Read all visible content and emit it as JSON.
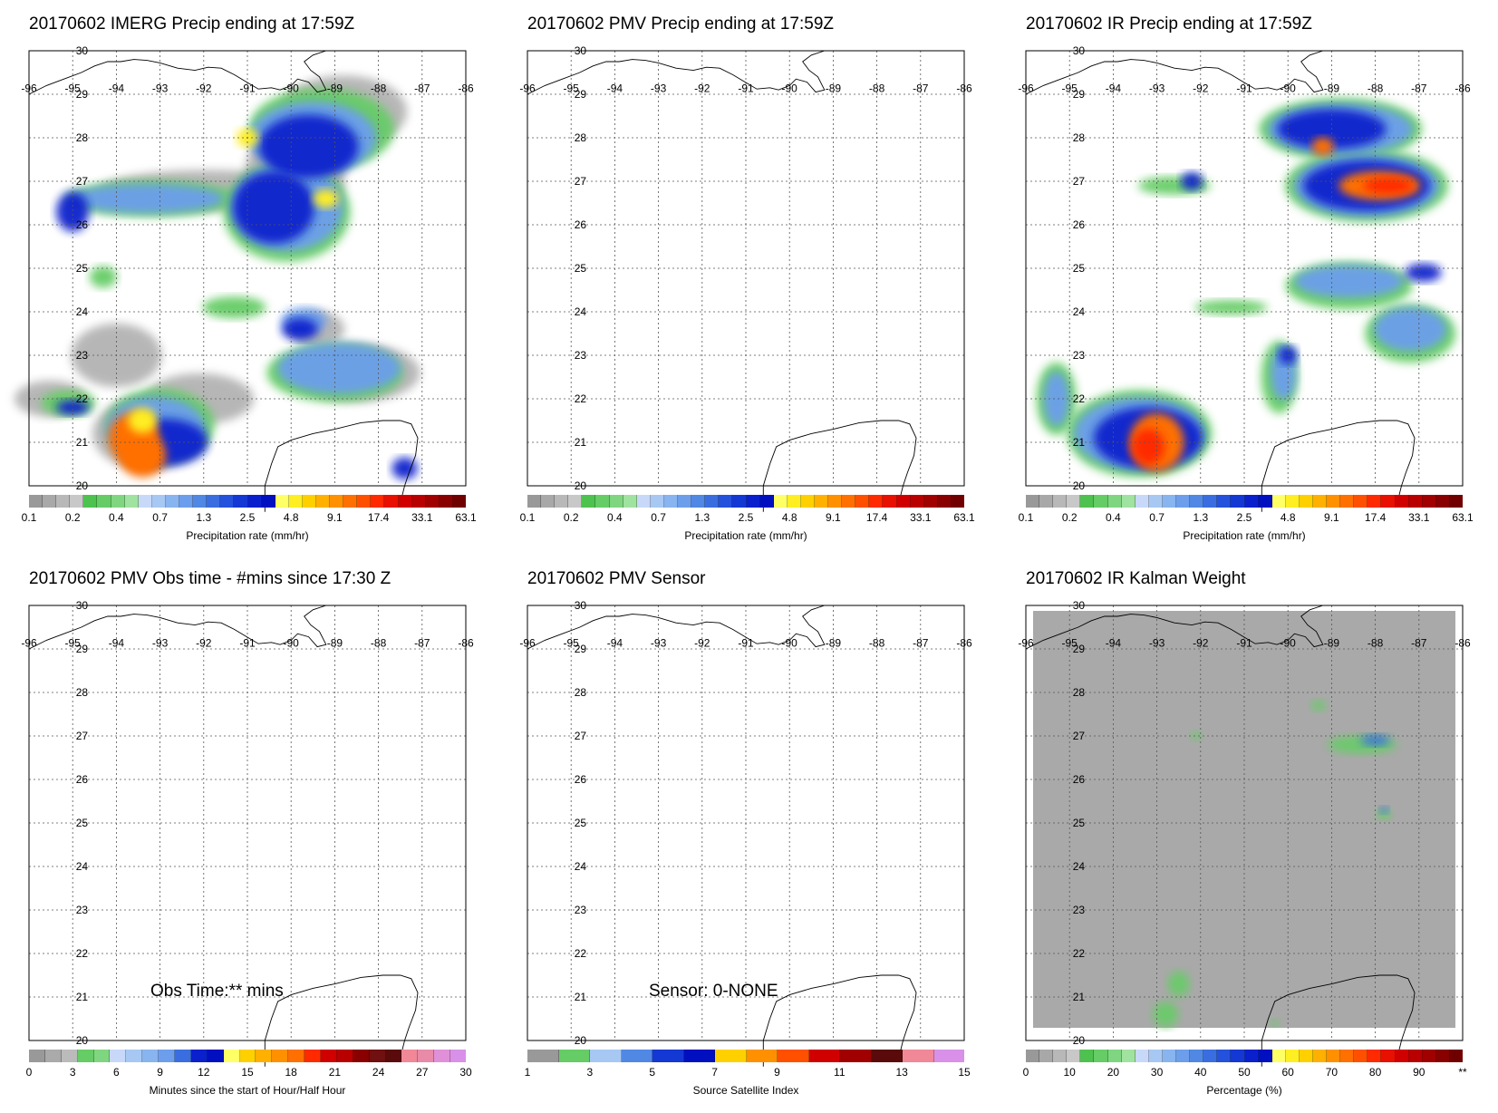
{
  "map_frame": {
    "lon_range": [
      -96,
      -86
    ],
    "lat_range": [
      20,
      30
    ],
    "lon_ticks": [
      "-96",
      "-95",
      "-94",
      "-93",
      "-92",
      "-91",
      "-90",
      "-89",
      "-88",
      "-87",
      "-86"
    ],
    "lat_ticks": [
      "20",
      "21",
      "22",
      "23",
      "24",
      "25",
      "26",
      "27",
      "28",
      "29",
      "30"
    ],
    "grid": true,
    "grid_style": "dotted",
    "coastline_color": "#000000"
  },
  "precip_colorbar": {
    "colors": [
      "#999999",
      "#a8a8a8",
      "#b8b8b8",
      "#c8c8c8",
      "#4ec24e",
      "#66cc66",
      "#80d680",
      "#a0e2a0",
      "#c8d8f8",
      "#a8c8f4",
      "#88b4f0",
      "#6c9eec",
      "#5088e4",
      "#3a6ee0",
      "#2452dc",
      "#1438d4",
      "#0a20cc",
      "#0010c0",
      "#ffff66",
      "#ffee22",
      "#ffd000",
      "#ffb000",
      "#ff9000",
      "#ff7000",
      "#ff5000",
      "#ff2a00",
      "#e81000",
      "#d00000",
      "#b80000",
      "#a00000",
      "#880000",
      "#700000"
    ],
    "ticks": [
      "0.1",
      "0.2",
      "0.4",
      "0.7",
      "1.3",
      "2.5",
      "4.8",
      "9.1",
      "17.4",
      "33.1",
      "63.1"
    ],
    "title": "Precipitation rate (mm/hr)"
  },
  "panels": [
    {
      "title": "20170602 IMERG Precip ending at 17:59Z",
      "field": "imerg",
      "colorbar": "precip"
    },
    {
      "title": "20170602 PMV Precip ending at 17:59Z",
      "field": "none",
      "colorbar": "precip"
    },
    {
      "title": "20170602 IR Precip ending at 17:59Z",
      "field": "ir",
      "colorbar": "precip"
    },
    {
      "title": "20170602 PMV Obs time - #mins since 17:30 Z",
      "field": "none",
      "note": "Obs Time:** mins",
      "colorbar": {
        "colors": [
          "#999999",
          "#aaaaaa",
          "#bbbbbb",
          "#66cc66",
          "#80d680",
          "#c8d8f8",
          "#a8c8f4",
          "#88b4f0",
          "#6c9eec",
          "#3a6ee0",
          "#0a20cc",
          "#0010c0",
          "#ffff66",
          "#ffd000",
          "#ffb000",
          "#ff9000",
          "#ff7000",
          "#ff2a00",
          "#d00000",
          "#b80000",
          "#880000",
          "#701010",
          "#5a0a0a",
          "#f08898",
          "#e88aa8",
          "#e090d8",
          "#d890e8"
        ],
        "ticks": [
          "0",
          "3",
          "6",
          "9",
          "12",
          "15",
          "18",
          "21",
          "24",
          "27",
          "30"
        ],
        "title": "Minutes since the start of Hour/Half Hour"
      }
    },
    {
      "title": "20170602 PMV Sensor",
      "field": "none",
      "note": "Sensor:  0-NONE",
      "colorbar": {
        "colors": [
          "#999999",
          "#66cc66",
          "#a8c8f4",
          "#5088e4",
          "#1438d4",
          "#0010c0",
          "#ffd000",
          "#ff9000",
          "#ff5000",
          "#d00000",
          "#a00000",
          "#5a0a0a",
          "#f08898",
          "#d890e8"
        ],
        "ticks": [
          "1",
          "3",
          "5",
          "7",
          "9",
          "11",
          "13",
          "15"
        ],
        "title": "Source Satellite Index"
      }
    },
    {
      "title": "20170602 IR Kalman Weight",
      "field": "kalman",
      "colorbar": {
        "colors": [
          "#999999",
          "#a8a8a8",
          "#b8b8b8",
          "#c8c8c8",
          "#4ec24e",
          "#66cc66",
          "#80d680",
          "#a0e2a0",
          "#c8d8f8",
          "#a8c8f4",
          "#88b4f0",
          "#6c9eec",
          "#5088e4",
          "#3a6ee0",
          "#2452dc",
          "#1438d4",
          "#0a20cc",
          "#0010c0",
          "#ffff66",
          "#ffee22",
          "#ffd000",
          "#ffb000",
          "#ff9000",
          "#ff7000",
          "#ff5000",
          "#ff2a00",
          "#e81000",
          "#d00000",
          "#b80000",
          "#a00000",
          "#880000",
          "#700000"
        ],
        "ticks": [
          "0",
          "10",
          "20",
          "30",
          "40",
          "50",
          "60",
          "70",
          "80",
          "90",
          "**"
        ],
        "title": "Percentage (%)"
      }
    }
  ]
}
